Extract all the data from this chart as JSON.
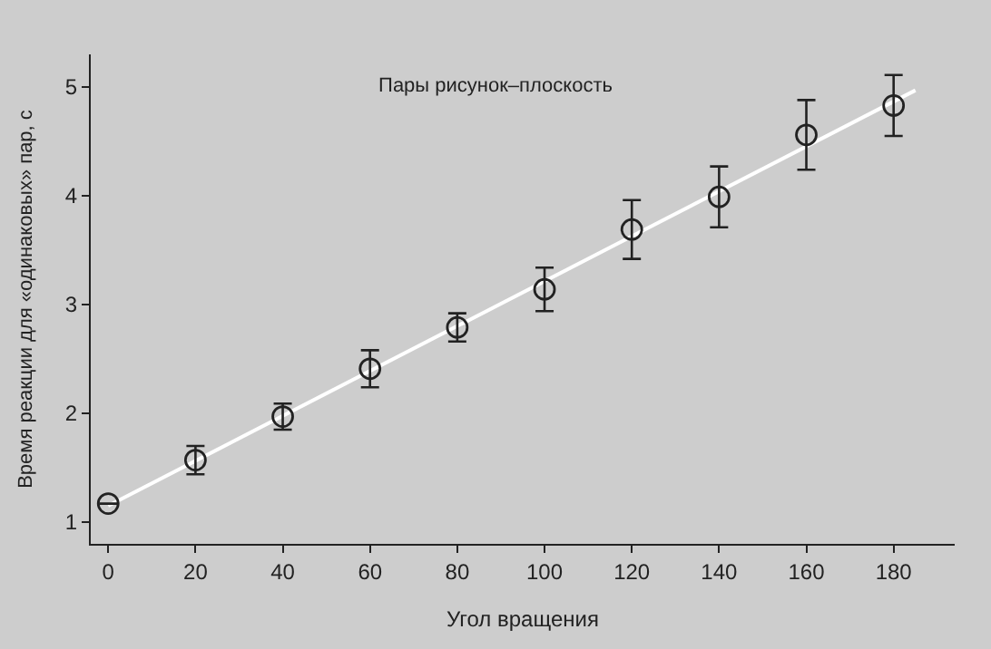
{
  "chart_data": {
    "type": "scatter",
    "title": "Пары рисунок–плоскость",
    "xlabel": "Угол вращения",
    "ylabel": "Время реакции для «одинаковых» пар, с",
    "x": [
      0,
      20,
      40,
      60,
      80,
      100,
      120,
      140,
      160,
      180
    ],
    "series": [
      {
        "type": "line",
        "marker": "none",
        "color": "#ffffff",
        "x": [
          0,
          185
        ],
        "values": [
          1.15,
          4.97
        ]
      },
      {
        "color": "#222222",
        "values": [
          1.17,
          1.57,
          1.97,
          2.41,
          2.79,
          3.14,
          3.69,
          3.99,
          4.56,
          4.83
        ],
        "errors": [
          null,
          0.13,
          0.12,
          0.17,
          0.13,
          0.2,
          0.27,
          0.28,
          0.32,
          0.28
        ]
      }
    ],
    "marker": "circle",
    "xlim": [
      -4,
      194
    ],
    "ylim": [
      0.8,
      5.3
    ],
    "xticks": [
      0,
      20,
      40,
      60,
      80,
      100,
      120,
      140,
      160,
      180
    ],
    "yticks": [
      1,
      2,
      3,
      4,
      5
    ],
    "grid": false
  }
}
